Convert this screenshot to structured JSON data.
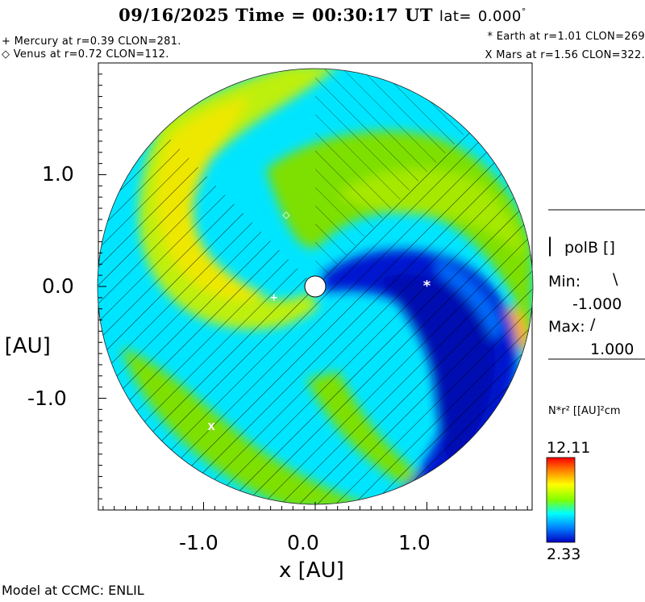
{
  "header": {
    "date": "09/16/2025",
    "time_label": "Time = ",
    "time": "00:30:17",
    "timezone": "UT",
    "lat_label": "lat=",
    "lat_value": "0.000",
    "degree_mark": "°"
  },
  "planets": {
    "mercury": {
      "marker": "+",
      "text": "Mercury at r=0.39 CLON=281."
    },
    "venus": {
      "marker": "◇",
      "text": "Venus at r=0.72 CLON=112."
    },
    "earth": {
      "marker": "*",
      "text": "Earth at   r=1.01 CLON=269"
    },
    "mars": {
      "marker": "X",
      "text": "Mars at r=1.56 CLON=322."
    }
  },
  "panel": {
    "field_label": "polB []",
    "field_bar": "|",
    "min_label": "Min:",
    "min_symbol": "\\",
    "min_value": "-1.000",
    "max_label": "Max:",
    "max_symbol": "/",
    "max_value": "1.000",
    "density_label": "N*r² [[AU]²cm",
    "colorbar_max": "12.11",
    "colorbar_min": "2.33"
  },
  "footer": {
    "model_label": "Model at CCMC: ENLIL"
  },
  "colors": {
    "background_density": "#00e5ff",
    "high_density": "#e8e800",
    "mid_density": "#7ee000",
    "low_density": "#0010c8",
    "colorbar": [
      "#ff0000",
      "#ff8000",
      "#ffff00",
      "#80ff00",
      "#00ffff",
      "#0080ff",
      "#0000c0"
    ]
  },
  "chart_data": {
    "type": "heatmap",
    "title": "09/16/2025 Time = 00:30:17 UT lat= 0.000°",
    "xlabel": "x [AU]",
    "ylabel": "y [AU]",
    "xlim": [
      -1.95,
      1.95
    ],
    "ylim": [
      -1.95,
      1.95
    ],
    "x_ticks": [
      "-1.0",
      "0.0",
      "1.0"
    ],
    "y_ticks": [
      "1.0",
      "0.0",
      "-1.0"
    ],
    "x_tick_values": [
      -1.0,
      0.0,
      1.0
    ],
    "y_tick_values": [
      1.0,
      0.0,
      -1.0
    ],
    "domain_radius_au": 1.95,
    "grid": false,
    "colorbar": {
      "label": "N*r² [[AU]²cm",
      "min": 2.33,
      "max": 12.11
    },
    "planet_positions_au": [
      {
        "name": "Mercury",
        "marker": "+",
        "x": -0.37,
        "y": -0.09
      },
      {
        "name": "Venus",
        "marker": "◇",
        "x": -0.26,
        "y": 0.65
      },
      {
        "name": "Earth",
        "marker": "*",
        "x": 1.0,
        "y": 0.0
      },
      {
        "name": "Mars",
        "marker": "X",
        "x": -0.93,
        "y": -1.25
      }
    ]
  }
}
